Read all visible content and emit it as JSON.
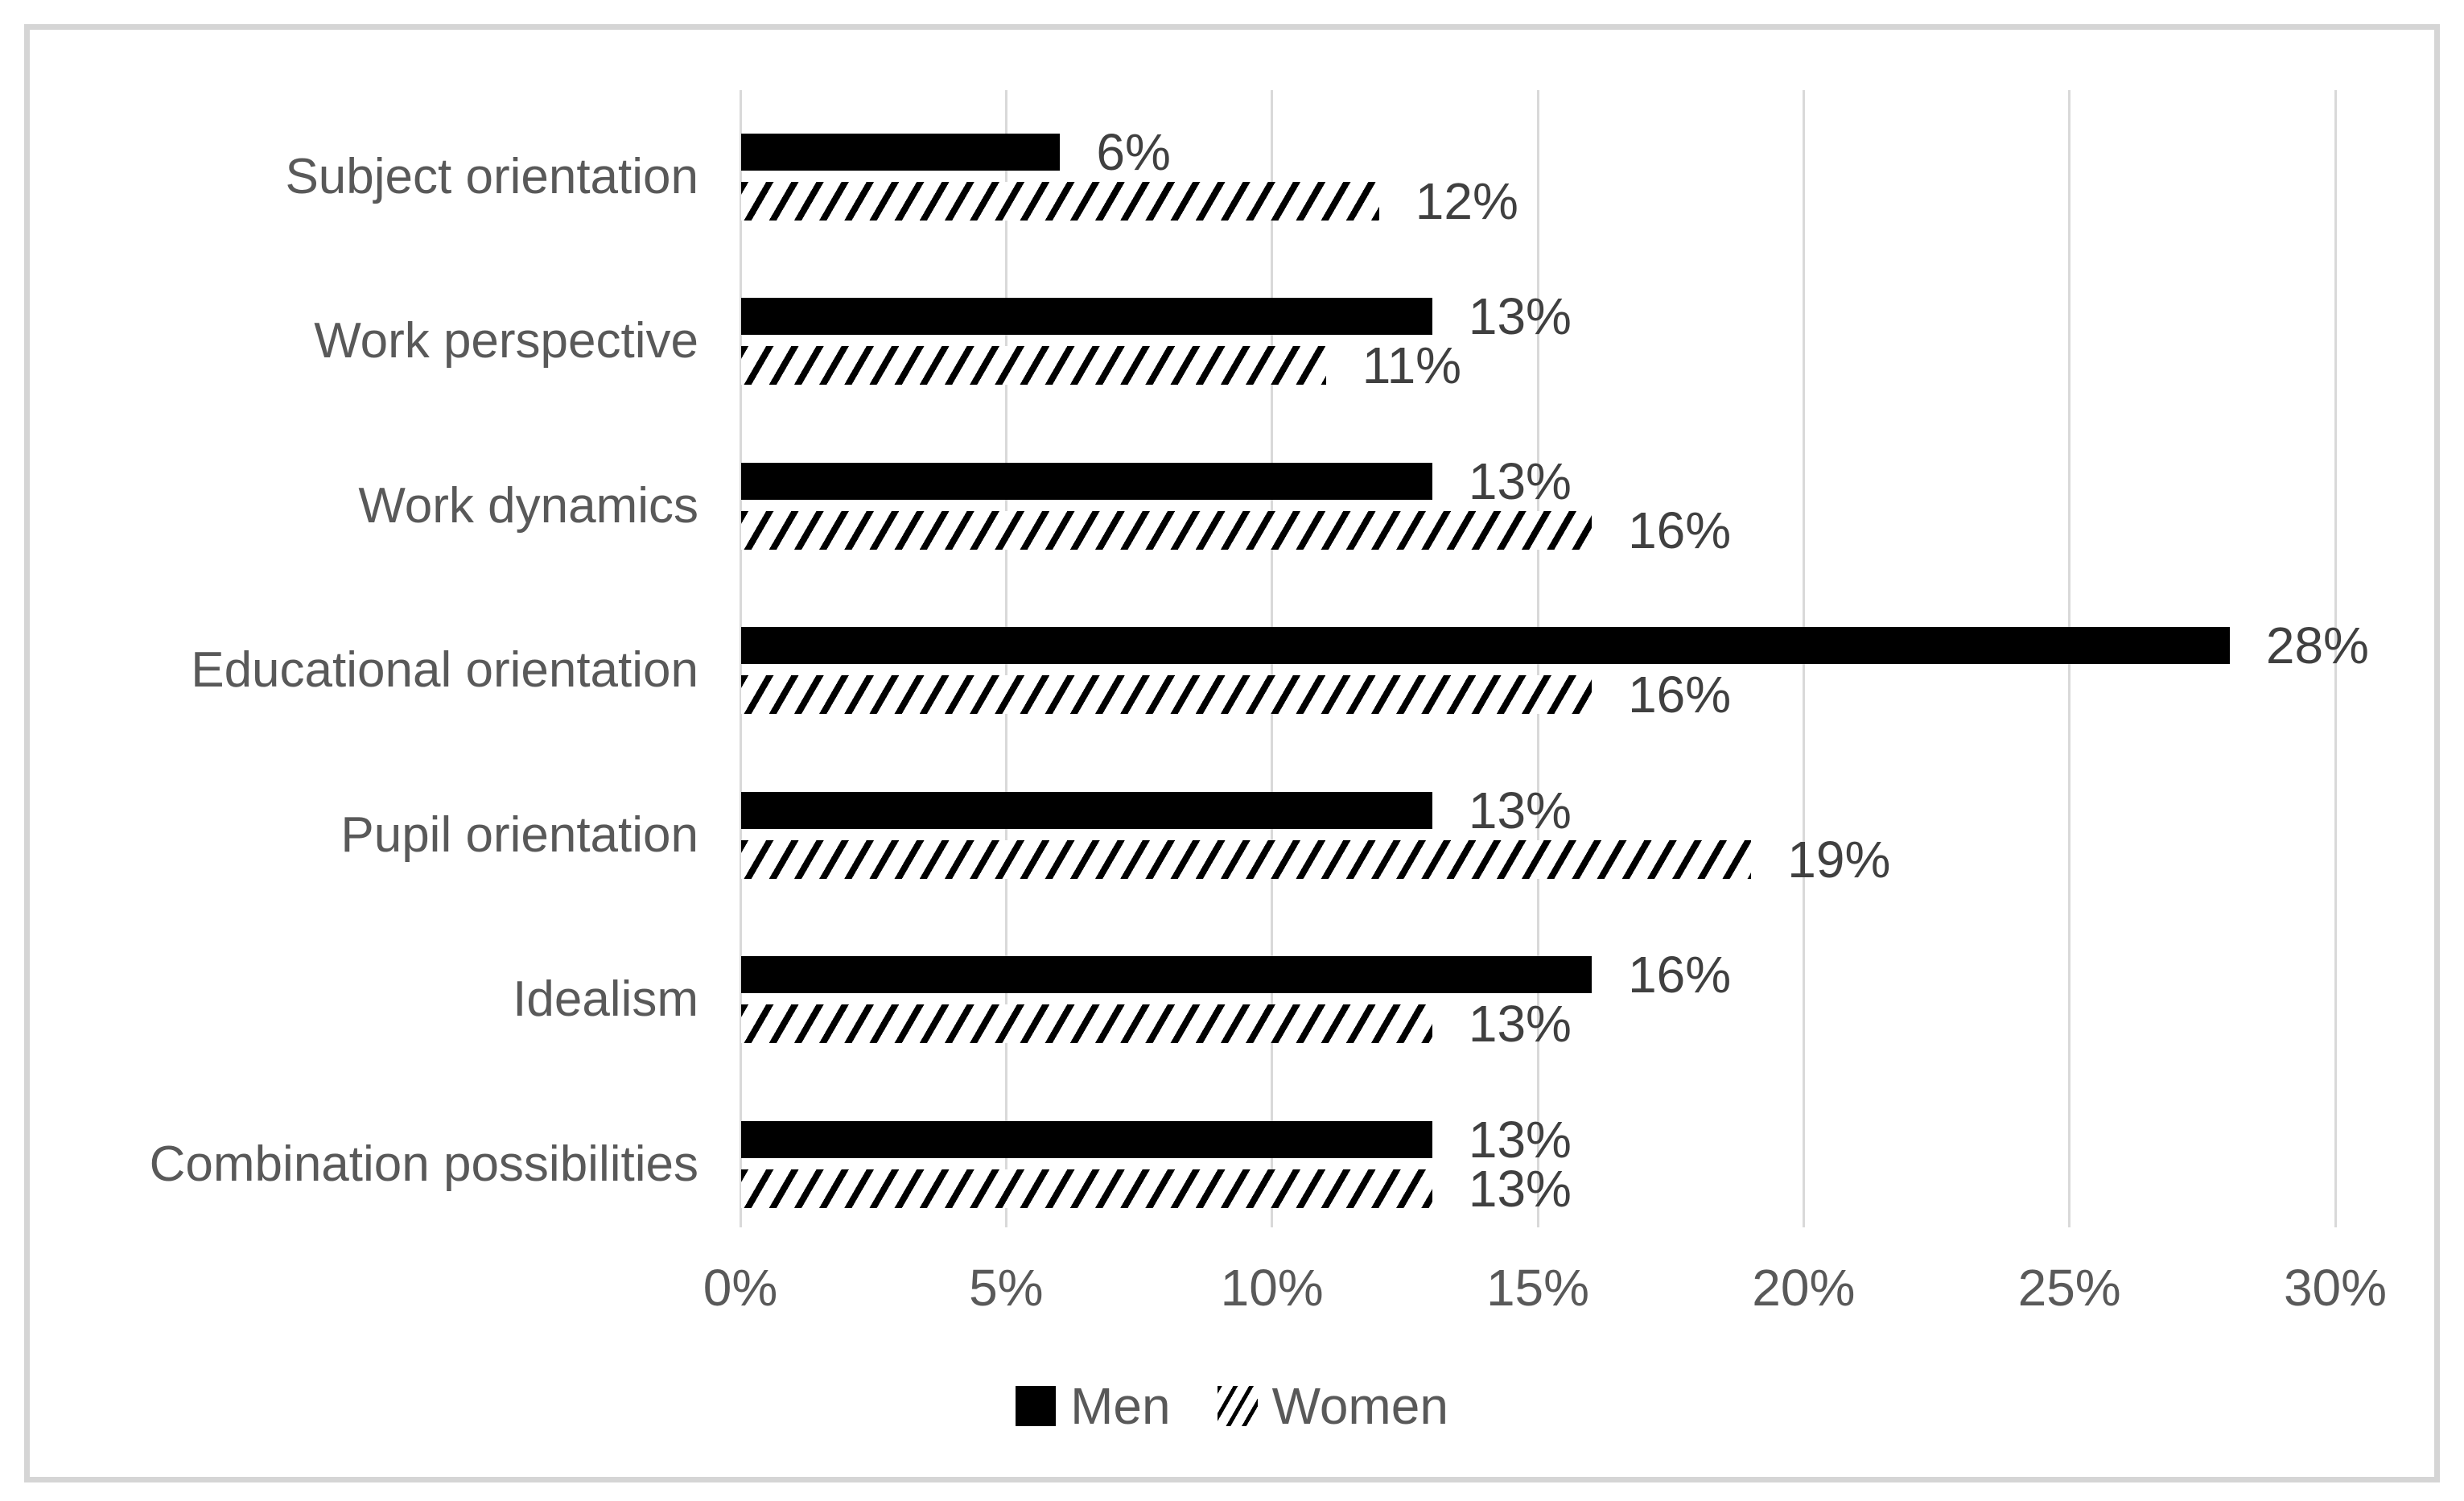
{
  "chart_data": {
    "type": "bar",
    "orientation": "horizontal",
    "title": "",
    "xlabel": "",
    "ylabel": "",
    "categories": [
      "Subject orientation",
      "Work perspective",
      "Work dynamics",
      "Educational orientation",
      "Pupil orientation",
      "Idealism",
      "Combination possibilities"
    ],
    "series": [
      {
        "name": "Men",
        "values": [
          6,
          13,
          13,
          28,
          13,
          16,
          13
        ],
        "labels": [
          "6%",
          "13%",
          "13%",
          "28%",
          "13%",
          "16%",
          "13%"
        ],
        "fill": "solid-black"
      },
      {
        "name": "Women",
        "values": [
          12,
          11,
          16,
          16,
          19,
          13,
          13
        ],
        "labels": [
          "12%",
          "11%",
          "16%",
          "16%",
          "19%",
          "13%",
          "13%"
        ],
        "fill": "diagonal-hatch"
      }
    ],
    "x_ticks": [
      "0%",
      "5%",
      "10%",
      "15%",
      "20%",
      "25%",
      "30%"
    ],
    "xlim": [
      0,
      30
    ],
    "grid": "vertical-only",
    "legend_position": "bottom",
    "colors": {
      "men_bar": "#000000",
      "women_hatch": "#000000",
      "axis_text": "#595959",
      "category_text": "#595959",
      "data_label_text": "#404040",
      "gridline": "#d9d9d9",
      "frame_border": "#d5d5d5",
      "background": "#ffffff"
    }
  }
}
